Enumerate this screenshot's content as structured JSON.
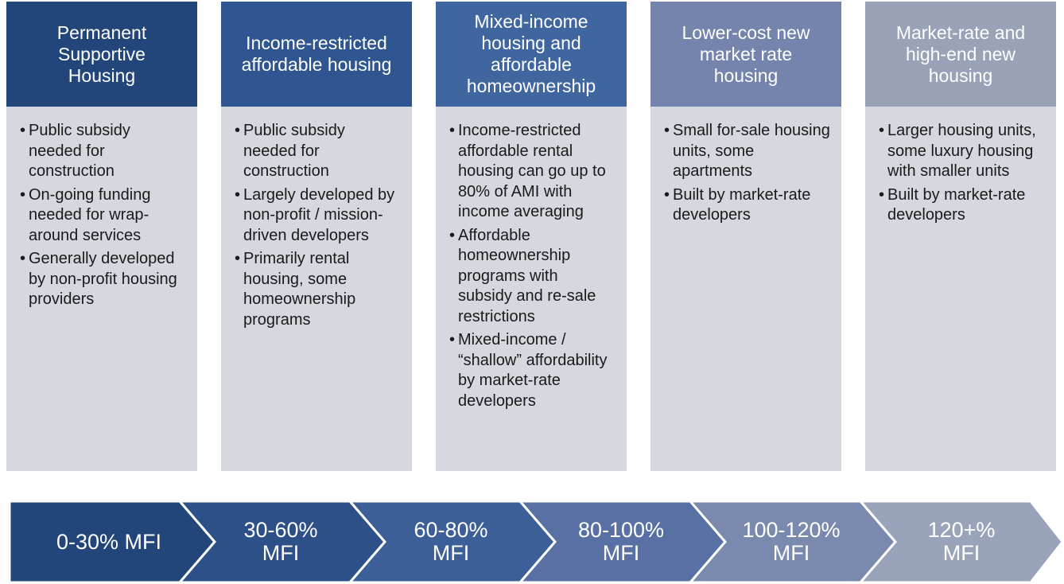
{
  "columns": [
    {
      "title": "Permanent Supportive Housing",
      "bullets": [
        "Public subsidy needed for construction",
        "On-going funding needed for wrap-around services",
        "Generally developed by non-profit housing providers"
      ]
    },
    {
      "title": "Income-restricted affordable housing",
      "bullets": [
        "Public subsidy needed for construction",
        "Largely developed by non-profit / mission-driven developers",
        "Primarily rental housing, some homeownership programs"
      ]
    },
    {
      "title": "Mixed-income housing and affordable homeownership",
      "bullets": [
        "Income-restricted affordable rental housing can go up to 80% of AMI with income averaging",
        "Affordable homeownership programs with subsidy and re-sale restrictions",
        "Mixed-income / “shallow” affordability by market-rate developers"
      ]
    },
    {
      "title": "Lower-cost new market rate housing",
      "bullets": [
        "Small for-sale housing units, some apartments",
        "Built by market-rate developers"
      ]
    },
    {
      "title": "Market-rate and high-end new housing",
      "bullets": [
        "Larger housing units, some luxury housing with smaller units",
        "Built by market-rate developers"
      ]
    }
  ],
  "ranges": [
    "0-30% MFI",
    "30-60% MFI",
    "60-80% MFI",
    "80-100% MFI",
    "100-120% MFI",
    "120+% MFI"
  ]
}
